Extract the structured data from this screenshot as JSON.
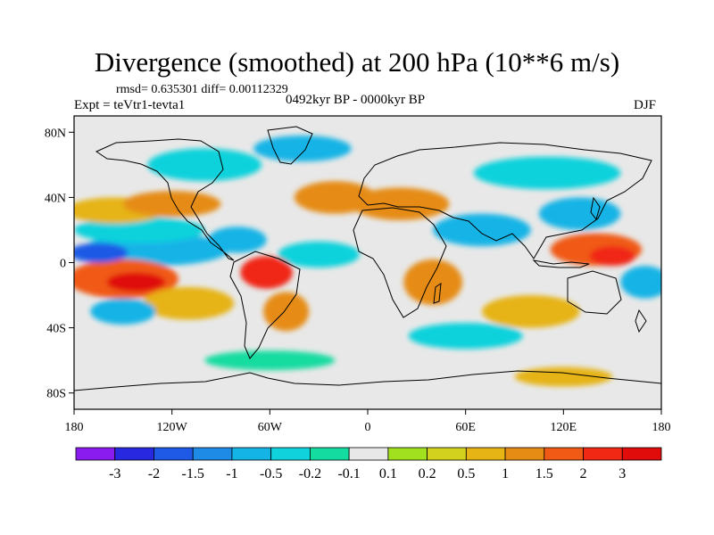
{
  "title": "Divergence (smoothed) at 200 hPa (10**6 m/s)",
  "stats": "rmsd= 0.635301 diff= 0.00112329",
  "experiment": "Expt = teVtr1-tevta1",
  "period": "0492kyr BP - 0000kyr BP",
  "season": "DJF",
  "map": {
    "lon_range": [
      -180,
      180
    ],
    "lat_range": [
      -90,
      90
    ],
    "background_color": "#e8e8e8",
    "lat_ticks": [
      {
        "value": 80,
        "label": "80N"
      },
      {
        "value": 40,
        "label": "40N"
      },
      {
        "value": 0,
        "label": "0"
      },
      {
        "value": -40,
        "label": "40S"
      },
      {
        "value": -80,
        "label": "80S"
      }
    ],
    "lon_ticks": [
      {
        "value": -180,
        "label": "180"
      },
      {
        "value": -120,
        "label": "120W"
      },
      {
        "value": -60,
        "label": "60W"
      },
      {
        "value": 0,
        "label": "0"
      },
      {
        "value": 60,
        "label": "60E"
      },
      {
        "value": 120,
        "label": "120E"
      },
      {
        "value": 180,
        "label": "180"
      }
    ],
    "field_blobs": [
      {
        "lon": -142,
        "lat": -12,
        "rx": 18,
        "ry": 6,
        "value": 3
      },
      {
        "lon": -150,
        "lat": -10,
        "rx": 34,
        "ry": 12,
        "value": 1.5
      },
      {
        "lon": -165,
        "lat": 6,
        "rx": 18,
        "ry": 6,
        "value": -2
      },
      {
        "lon": -130,
        "lat": 8,
        "rx": 45,
        "ry": 10,
        "value": -1
      },
      {
        "lon": -140,
        "lat": 20,
        "rx": 40,
        "ry": 8,
        "value": -0.5
      },
      {
        "lon": -155,
        "lat": 32,
        "rx": 30,
        "ry": 8,
        "value": 0.5
      },
      {
        "lon": -120,
        "lat": 36,
        "rx": 30,
        "ry": 8,
        "value": 1
      },
      {
        "lon": -150,
        "lat": -30,
        "rx": 20,
        "ry": 8,
        "value": -1
      },
      {
        "lon": -110,
        "lat": -25,
        "rx": 28,
        "ry": 10,
        "value": 0.5
      },
      {
        "lon": -62,
        "lat": -6,
        "rx": 16,
        "ry": 10,
        "value": 2
      },
      {
        "lon": -50,
        "lat": -30,
        "rx": 14,
        "ry": 12,
        "value": 1
      },
      {
        "lon": -80,
        "lat": 14,
        "rx": 18,
        "ry": 8,
        "value": -1
      },
      {
        "lon": -100,
        "lat": 60,
        "rx": 35,
        "ry": 10,
        "value": -0.5
      },
      {
        "lon": -40,
        "lat": 70,
        "rx": 30,
        "ry": 8,
        "value": -1
      },
      {
        "lon": -20,
        "lat": 40,
        "rx": 25,
        "ry": 10,
        "value": 1
      },
      {
        "lon": -30,
        "lat": 5,
        "rx": 25,
        "ry": 8,
        "value": -0.5
      },
      {
        "lon": 20,
        "lat": 36,
        "rx": 30,
        "ry": 10,
        "value": 1
      },
      {
        "lon": 40,
        "lat": -12,
        "rx": 18,
        "ry": 14,
        "value": 1
      },
      {
        "lon": 70,
        "lat": 20,
        "rx": 30,
        "ry": 10,
        "value": -1
      },
      {
        "lon": 110,
        "lat": 55,
        "rx": 45,
        "ry": 10,
        "value": -0.5
      },
      {
        "lon": 130,
        "lat": 30,
        "rx": 25,
        "ry": 10,
        "value": -1
      },
      {
        "lon": 140,
        "lat": 8,
        "rx": 28,
        "ry": 10,
        "value": 1.5
      },
      {
        "lon": 150,
        "lat": 4,
        "rx": 14,
        "ry": 6,
        "value": 2
      },
      {
        "lon": 170,
        "lat": -12,
        "rx": 15,
        "ry": 10,
        "value": -1
      },
      {
        "lon": 100,
        "lat": -30,
        "rx": 30,
        "ry": 10,
        "value": 0.5
      },
      {
        "lon": 60,
        "lat": -45,
        "rx": 35,
        "ry": 8,
        "value": -0.5
      },
      {
        "lon": 120,
        "lat": -70,
        "rx": 30,
        "ry": 6,
        "value": 0.5
      },
      {
        "lon": -60,
        "lat": -60,
        "rx": 40,
        "ry": 6,
        "value": -0.2
      }
    ]
  },
  "colorbar": {
    "levels": [
      "-3",
      "-2",
      "-1.5",
      "-1",
      "-0.5",
      "-0.2",
      "-0.1",
      "0.1",
      "0.2",
      "0.5",
      "1",
      "1.5",
      "2",
      "3"
    ],
    "colors": [
      "#8a1cf0",
      "#2828e0",
      "#1e5ae6",
      "#1e8ce6",
      "#14b4e6",
      "#10d2dc",
      "#14dca0",
      "#e8e8e8",
      "#a0e01e",
      "#d2d21e",
      "#e6b414",
      "#e68c14",
      "#f05a14",
      "#f02814",
      "#e00c0c"
    ]
  }
}
